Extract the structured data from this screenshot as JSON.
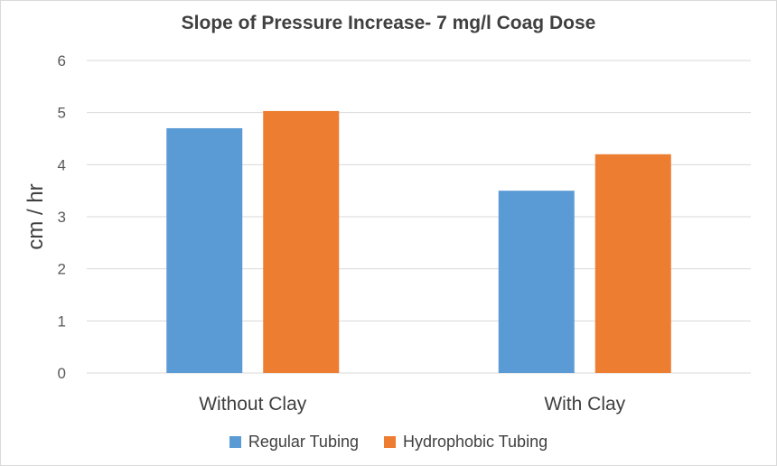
{
  "chart_data": {
    "type": "bar",
    "title": "Slope of Pressure Increase- 7 mg/l Coag Dose",
    "ylabel": "cm / hr",
    "xlabel": "",
    "categories": [
      "Without Clay",
      "With Clay"
    ],
    "ylim": [
      0,
      6
    ],
    "yticks": [
      0,
      1,
      2,
      3,
      4,
      5,
      6
    ],
    "grid": true,
    "legend_position": "bottom",
    "series": [
      {
        "name": "Regular Tubing",
        "color": "#5b9bd5",
        "values": [
          4.7,
          3.5
        ]
      },
      {
        "name": "Hydrophobic Tubing",
        "color": "#ed7d31",
        "values": [
          5.03,
          4.2
        ]
      }
    ]
  }
}
